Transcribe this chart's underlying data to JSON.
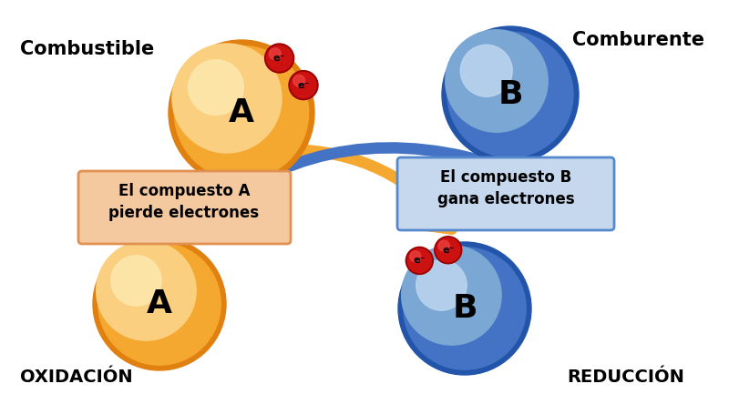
{
  "bg_color": "#ffffff",
  "orange_dark": "#E08010",
  "orange_mid": "#F5A830",
  "orange_light": "#FAD080",
  "orange_highlight": "#FDE8B0",
  "blue_dark": "#2255AA",
  "blue_mid": "#4472C4",
  "blue_light": "#7BA7D4",
  "blue_highlight": "#C0D8F0",
  "red_dark": "#990000",
  "red_mid": "#CC1111",
  "red_light": "#EE4444",
  "text_black": "#000000",
  "orange_box_bg": "#F5C9A0",
  "orange_box_edge": "#E09050",
  "blue_box_bg": "#C5D8EE",
  "blue_box_edge": "#5588CC",
  "label_combustible": "Combustible",
  "label_comburente": "Comburente",
  "label_oxidacion": "OXIDACIÓN",
  "label_reduccion": "REDUCCIÓN",
  "label_A": "A",
  "label_B": "B",
  "label_electron": "e⁻",
  "box_left_line1": "El compuesto A",
  "box_left_line2": "pierde electrones",
  "box_right_line1": "El compuesto B",
  "box_right_line2": "gana electrones",
  "figw": 8.0,
  "figh": 4.44,
  "dpi": 100
}
